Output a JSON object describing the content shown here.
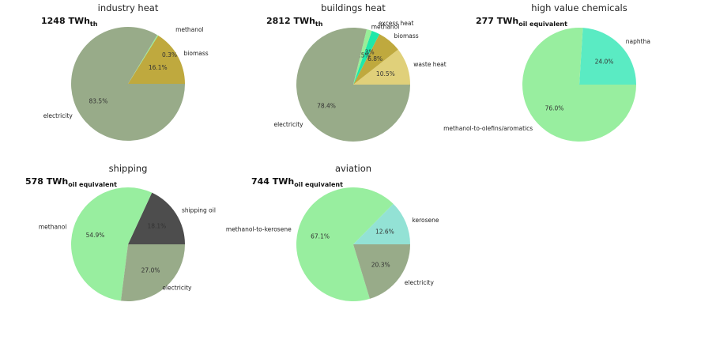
{
  "chart_data": [
    {
      "type": "pie",
      "title": "industry heat",
      "total": {
        "value": "1248 TWh",
        "unit": "th"
      },
      "slices": [
        {
          "label": "biomass",
          "value": 16.1,
          "pct_label": "16.1%",
          "color": "#bfa93e"
        },
        {
          "label": "methanol",
          "value": 0.3,
          "pct_label": "0.3%",
          "color": "#98ee98"
        },
        {
          "label": "electricity",
          "value": 83.5,
          "pct_label": "83.5%",
          "color": "#98ab89"
        }
      ]
    },
    {
      "type": "pie",
      "title": "buildings heat",
      "total": {
        "value": "2812 TWh",
        "unit": "th"
      },
      "slices": [
        {
          "label": "waste heat",
          "value": 10.5,
          "pct_label": "10.5%",
          "color": "#e0d07a"
        },
        {
          "label": "biomass",
          "value": 6.8,
          "pct_label": "6.8%",
          "color": "#bfa93e"
        },
        {
          "label": "excess heat",
          "value": 2.3,
          "pct_label": "2.3%",
          "color": "#1fe8a9"
        },
        {
          "label": "methanol",
          "value": 1.5,
          "pct_label": "1.5%",
          "color": "#98ee98"
        },
        {
          "label": "electricity",
          "value": 78.4,
          "pct_label": "78.4%",
          "color": "#98ab89"
        }
      ]
    },
    {
      "type": "pie",
      "title": "high value chemicals",
      "total": {
        "value": "277 TWh",
        "unit": "oil equivalent"
      },
      "slices": [
        {
          "label": "naphtha",
          "value": 24.0,
          "pct_label": "24.0%",
          "color": "#5aebc3"
        },
        {
          "label": "methanol-to-olefins/aromatics",
          "value": 76.0,
          "pct_label": "76.0%",
          "color": "#98ee9f"
        }
      ]
    },
    {
      "type": "pie",
      "title": "shipping",
      "total": {
        "value": "578 TWh",
        "unit": "oil equivalent"
      },
      "slices": [
        {
          "label": "shipping oil",
          "value": 18.1,
          "pct_label": "18.1%",
          "color": "#4d4d4d"
        },
        {
          "label": "methanol",
          "value": 54.9,
          "pct_label": "54.9%",
          "color": "#98ee9f"
        },
        {
          "label": "electricity",
          "value": 27.0,
          "pct_label": "27.0%",
          "color": "#98ab89"
        }
      ]
    },
    {
      "type": "pie",
      "title": "aviation",
      "total": {
        "value": "744 TWh",
        "unit": "oil equivalent"
      },
      "slices": [
        {
          "label": "kerosene",
          "value": 12.6,
          "pct_label": "12.6%",
          "color": "#93e2d5"
        },
        {
          "label": "methanol-to-kerosene",
          "value": 67.1,
          "pct_label": "67.1%",
          "color": "#98ee9f"
        },
        {
          "label": "electricity",
          "value": 20.3,
          "pct_label": "20.3%",
          "color": "#98ab89"
        }
      ]
    }
  ]
}
